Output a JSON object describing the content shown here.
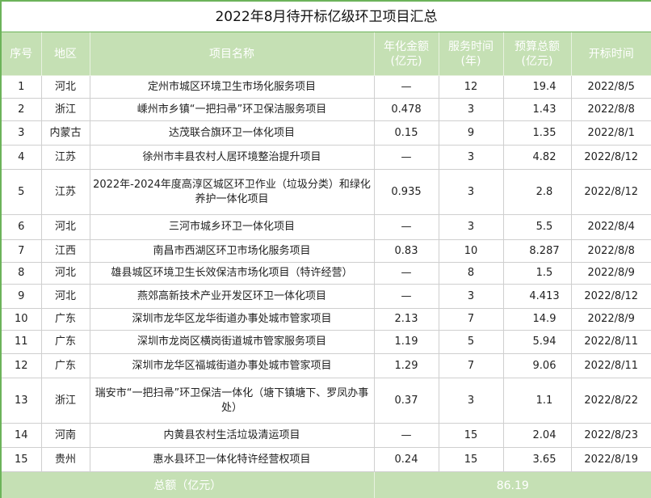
{
  "title": "2022年8月待开标亿级环卫项目汇总",
  "headers": [
    "序号",
    "地区",
    "项目名称",
    "年化金额\n(亿元)",
    "服务时间\n(年)",
    "预算总额\n(亿元)",
    "开标时间"
  ],
  "rows": [
    [
      "1",
      "河北",
      "定州市城区环境卫生市场化服务项目",
      "—",
      "12",
      "19.4",
      "2022/8/5"
    ],
    [
      "2",
      "浙江",
      "嵊州市乡镇“一把扫帚”环卫保洁服务项目",
      "0.478",
      "3",
      "1.43",
      "2022/8/8"
    ],
    [
      "3",
      "内蒙古",
      "达茂联合旗环卫一体化项目",
      "0.15",
      "9",
      "1.35",
      "2022/8/1"
    ],
    [
      "4",
      "江苏",
      "徐州市丰县农村人居环境整治提升项目",
      "—",
      "3",
      "4.82",
      "2022/8/12"
    ],
    [
      "5",
      "江苏",
      "2022年-2024年度高淳区城区环卫作业（垃圾分类）和绿化养护一体化项目",
      "0.935",
      "3",
      "2.8",
      "2022/8/12"
    ],
    [
      "6",
      "河北",
      "三河市城乡环卫一体化项目",
      "—",
      "3",
      "5.5",
      "2022/8/4"
    ],
    [
      "7",
      "江西",
      "南昌市西湖区环卫市场化服务项目",
      "0.83",
      "10",
      "8.287",
      "2022/8/8"
    ],
    [
      "8",
      "河北",
      "雄县城区环境卫生长效保洁市场化项目（特许经营）",
      "—",
      "8",
      "1.5",
      "2022/8/9"
    ],
    [
      "9",
      "河北",
      "燕郊高新技术产业开发区环卫一体化项目",
      "—",
      "3",
      "4.413",
      "2022/8/12"
    ],
    [
      "10",
      "广东",
      "深圳市龙华区龙华街道办事处城市管家项目",
      "2.13",
      "7",
      "14.9",
      "2022/8/9"
    ],
    [
      "11",
      "广东",
      "深圳市龙岗区横岗街道城市管家服务项目",
      "1.19",
      "5",
      "5.94",
      "2022/8/11"
    ],
    [
      "12",
      "广东",
      "深圳市龙华区福城街道办事处城市管家项目",
      "1.29",
      "7",
      "9.06",
      "2022/8/11"
    ],
    [
      "13",
      "浙江",
      "瑞安市“一把扫帚”环卫保洁一体化（塘下镇塘下、罗凤办事处）",
      "0.37",
      "3",
      "1.1",
      "2022/8/22"
    ],
    [
      "14",
      "河南",
      "内黄县农村生活垃圾清运项目",
      "—",
      "15",
      "2.04",
      "2022/8/23"
    ],
    [
      "15",
      "贵州",
      "惠水县环卫一体化特许经营权项目",
      "0.24",
      "15",
      "3.65",
      "2022/8/19"
    ]
  ],
  "total": {
    "label": "总额（亿元）",
    "value": "86.19"
  },
  "colors": {
    "header_bg": "#c5e0b4",
    "border": "#6cb35a"
  }
}
